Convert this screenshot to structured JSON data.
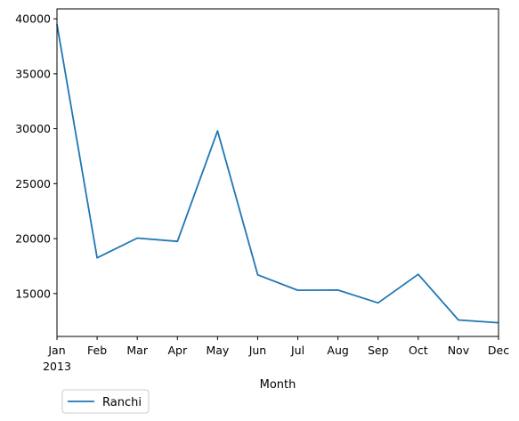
{
  "chart_data": {
    "type": "line",
    "title": "",
    "xlabel": "Month",
    "ylabel": "",
    "categories": [
      "Jan",
      "Feb",
      "Mar",
      "Apr",
      "May",
      "Jun",
      "Jul",
      "Aug",
      "Sep",
      "Oct",
      "Nov",
      "Dec"
    ],
    "x_secondary_label": "2013",
    "series": [
      {
        "name": "Ranchi",
        "color": "#1f77b4",
        "values": [
          39500,
          18250,
          20050,
          19750,
          29800,
          16700,
          15300,
          15320,
          14150,
          16750,
          12600,
          12350
        ]
      }
    ],
    "yticks": [
      15000,
      20000,
      25000,
      30000,
      35000,
      40000
    ],
    "ylim": [
      11100,
      40900
    ],
    "grid": false,
    "legend_position": "below-left"
  }
}
